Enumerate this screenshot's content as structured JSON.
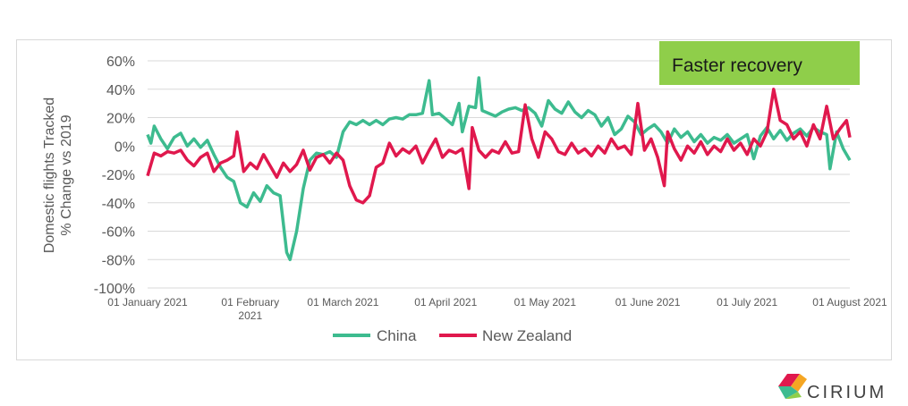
{
  "chart_data": {
    "type": "line",
    "ylabel_lines": [
      "Domestic flights Tracked",
      "% Change vs 2019"
    ],
    "ylim": [
      -100,
      60
    ],
    "yticks": [
      60,
      40,
      20,
      0,
      -20,
      -40,
      -60,
      -80,
      -100
    ],
    "ytick_labels": [
      "60%",
      "40%",
      "20%",
      "0%",
      "-20%",
      "-40%",
      "-60%",
      "-80%",
      "-100%"
    ],
    "xlim": [
      "2021-01-01",
      "2021-08-01"
    ],
    "xticks": [
      {
        "date": "2021-01-01",
        "lines": [
          "01 January 2021"
        ]
      },
      {
        "date": "2021-02-01",
        "lines": [
          "01 February",
          "2021"
        ]
      },
      {
        "date": "2021-03-01",
        "lines": [
          "01 March 2021"
        ]
      },
      {
        "date": "2021-04-01",
        "lines": [
          "01 April 2021"
        ]
      },
      {
        "date": "2021-05-01",
        "lines": [
          "01 May 2021"
        ]
      },
      {
        "date": "2021-06-01",
        "lines": [
          "01 June 2021"
        ]
      },
      {
        "date": "2021-07-01",
        "lines": [
          "01 July 2021"
        ]
      },
      {
        "date": "2021-08-01",
        "lines": [
          "01 August 2021"
        ]
      }
    ],
    "grid": true,
    "legend_position": "bottom",
    "series": [
      {
        "name": "China",
        "color": "#3dbb8f",
        "points": [
          [
            "2021-01-01",
            8
          ],
          [
            "2021-01-02",
            2
          ],
          [
            "2021-01-03",
            14
          ],
          [
            "2021-01-05",
            5
          ],
          [
            "2021-01-07",
            -2
          ],
          [
            "2021-01-09",
            6
          ],
          [
            "2021-01-11",
            9
          ],
          [
            "2021-01-13",
            0
          ],
          [
            "2021-01-15",
            5
          ],
          [
            "2021-01-17",
            -1
          ],
          [
            "2021-01-19",
            4
          ],
          [
            "2021-01-21",
            -6
          ],
          [
            "2021-01-23",
            -15
          ],
          [
            "2021-01-25",
            -22
          ],
          [
            "2021-01-27",
            -25
          ],
          [
            "2021-01-29",
            -40
          ],
          [
            "2021-01-31",
            -43
          ],
          [
            "2021-02-02",
            -33
          ],
          [
            "2021-02-04",
            -39
          ],
          [
            "2021-02-06",
            -28
          ],
          [
            "2021-02-08",
            -33
          ],
          [
            "2021-02-10",
            -35
          ],
          [
            "2021-02-12",
            -75
          ],
          [
            "2021-02-13",
            -80
          ],
          [
            "2021-02-15",
            -60
          ],
          [
            "2021-02-17",
            -30
          ],
          [
            "2021-02-19",
            -10
          ],
          [
            "2021-02-21",
            -5
          ],
          [
            "2021-02-23",
            -6
          ],
          [
            "2021-02-25",
            -4
          ],
          [
            "2021-02-27",
            -8
          ],
          [
            "2021-03-01",
            10
          ],
          [
            "2021-03-03",
            17
          ],
          [
            "2021-03-05",
            15
          ],
          [
            "2021-03-07",
            18
          ],
          [
            "2021-03-09",
            15
          ],
          [
            "2021-03-11",
            18
          ],
          [
            "2021-03-13",
            15
          ],
          [
            "2021-03-15",
            19
          ],
          [
            "2021-03-17",
            20
          ],
          [
            "2021-03-19",
            19
          ],
          [
            "2021-03-21",
            22
          ],
          [
            "2021-03-23",
            22
          ],
          [
            "2021-03-25",
            23
          ],
          [
            "2021-03-27",
            46
          ],
          [
            "2021-03-28",
            22
          ],
          [
            "2021-03-30",
            23
          ],
          [
            "2021-04-01",
            19
          ],
          [
            "2021-04-03",
            15
          ],
          [
            "2021-04-05",
            30
          ],
          [
            "2021-04-06",
            10
          ],
          [
            "2021-04-08",
            28
          ],
          [
            "2021-04-10",
            27
          ],
          [
            "2021-04-11",
            48
          ],
          [
            "2021-04-12",
            25
          ],
          [
            "2021-04-14",
            23
          ],
          [
            "2021-04-16",
            21
          ],
          [
            "2021-04-18",
            24
          ],
          [
            "2021-04-20",
            26
          ],
          [
            "2021-04-22",
            27
          ],
          [
            "2021-04-24",
            25
          ],
          [
            "2021-04-26",
            27
          ],
          [
            "2021-04-28",
            23
          ],
          [
            "2021-04-30",
            14
          ],
          [
            "2021-05-02",
            32
          ],
          [
            "2021-05-04",
            26
          ],
          [
            "2021-05-06",
            23
          ],
          [
            "2021-05-08",
            31
          ],
          [
            "2021-05-10",
            24
          ],
          [
            "2021-05-12",
            20
          ],
          [
            "2021-05-14",
            25
          ],
          [
            "2021-05-16",
            22
          ],
          [
            "2021-05-18",
            14
          ],
          [
            "2021-05-20",
            20
          ],
          [
            "2021-05-22",
            8
          ],
          [
            "2021-05-24",
            12
          ],
          [
            "2021-05-26",
            21
          ],
          [
            "2021-05-28",
            17
          ],
          [
            "2021-05-30",
            8
          ],
          [
            "2021-06-01",
            12
          ],
          [
            "2021-06-03",
            15
          ],
          [
            "2021-06-05",
            10
          ],
          [
            "2021-06-07",
            2
          ],
          [
            "2021-06-09",
            12
          ],
          [
            "2021-06-11",
            6
          ],
          [
            "2021-06-13",
            10
          ],
          [
            "2021-06-15",
            3
          ],
          [
            "2021-06-17",
            8
          ],
          [
            "2021-06-19",
            2
          ],
          [
            "2021-06-21",
            6
          ],
          [
            "2021-06-23",
            4
          ],
          [
            "2021-06-25",
            8
          ],
          [
            "2021-06-27",
            2
          ],
          [
            "2021-06-29",
            5
          ],
          [
            "2021-07-01",
            8
          ],
          [
            "2021-07-03",
            -9
          ],
          [
            "2021-07-05",
            7
          ],
          [
            "2021-07-07",
            13
          ],
          [
            "2021-07-09",
            5
          ],
          [
            "2021-07-11",
            11
          ],
          [
            "2021-07-13",
            4
          ],
          [
            "2021-07-15",
            9
          ],
          [
            "2021-07-17",
            12
          ],
          [
            "2021-07-19",
            7
          ],
          [
            "2021-07-21",
            13
          ],
          [
            "2021-07-23",
            10
          ],
          [
            "2021-07-25",
            8
          ],
          [
            "2021-07-26",
            -16
          ],
          [
            "2021-07-28",
            10
          ],
          [
            "2021-07-30",
            -2
          ],
          [
            "2021-08-01",
            -10
          ]
        ]
      },
      {
        "name": "New Zealand",
        "color": "#e0184d",
        "points": [
          [
            "2021-01-01",
            -21
          ],
          [
            "2021-01-03",
            -5
          ],
          [
            "2021-01-05",
            -7
          ],
          [
            "2021-01-07",
            -4
          ],
          [
            "2021-01-09",
            -5
          ],
          [
            "2021-01-11",
            -3
          ],
          [
            "2021-01-13",
            -10
          ],
          [
            "2021-01-15",
            -14
          ],
          [
            "2021-01-17",
            -8
          ],
          [
            "2021-01-19",
            -5
          ],
          [
            "2021-01-21",
            -18
          ],
          [
            "2021-01-23",
            -12
          ],
          [
            "2021-01-25",
            -10
          ],
          [
            "2021-01-27",
            -7
          ],
          [
            "2021-01-28",
            10
          ],
          [
            "2021-01-30",
            -18
          ],
          [
            "2021-02-01",
            -12
          ],
          [
            "2021-02-03",
            -16
          ],
          [
            "2021-02-05",
            -6
          ],
          [
            "2021-02-07",
            -14
          ],
          [
            "2021-02-09",
            -22
          ],
          [
            "2021-02-11",
            -12
          ],
          [
            "2021-02-13",
            -18
          ],
          [
            "2021-02-15",
            -13
          ],
          [
            "2021-02-17",
            -3
          ],
          [
            "2021-02-19",
            -17
          ],
          [
            "2021-02-21",
            -8
          ],
          [
            "2021-02-23",
            -6
          ],
          [
            "2021-02-25",
            -12
          ],
          [
            "2021-02-27",
            -5
          ],
          [
            "2021-03-01",
            -10
          ],
          [
            "2021-03-03",
            -28
          ],
          [
            "2021-03-05",
            -38
          ],
          [
            "2021-03-07",
            -40
          ],
          [
            "2021-03-09",
            -35
          ],
          [
            "2021-03-11",
            -15
          ],
          [
            "2021-03-13",
            -12
          ],
          [
            "2021-03-15",
            2
          ],
          [
            "2021-03-17",
            -7
          ],
          [
            "2021-03-19",
            -2
          ],
          [
            "2021-03-21",
            -5
          ],
          [
            "2021-03-23",
            0
          ],
          [
            "2021-03-25",
            -12
          ],
          [
            "2021-03-27",
            -3
          ],
          [
            "2021-03-29",
            5
          ],
          [
            "2021-03-31",
            -8
          ],
          [
            "2021-04-02",
            -3
          ],
          [
            "2021-04-04",
            -5
          ],
          [
            "2021-04-06",
            -2
          ],
          [
            "2021-04-08",
            -30
          ],
          [
            "2021-04-09",
            13
          ],
          [
            "2021-04-11",
            -3
          ],
          [
            "2021-04-13",
            -8
          ],
          [
            "2021-04-15",
            -3
          ],
          [
            "2021-04-17",
            -5
          ],
          [
            "2021-04-19",
            3
          ],
          [
            "2021-04-21",
            -5
          ],
          [
            "2021-04-23",
            -4
          ],
          [
            "2021-04-25",
            29
          ],
          [
            "2021-04-27",
            5
          ],
          [
            "2021-04-29",
            -8
          ],
          [
            "2021-05-01",
            10
          ],
          [
            "2021-05-03",
            5
          ],
          [
            "2021-05-05",
            -4
          ],
          [
            "2021-05-07",
            -6
          ],
          [
            "2021-05-09",
            2
          ],
          [
            "2021-05-11",
            -5
          ],
          [
            "2021-05-13",
            -2
          ],
          [
            "2021-05-15",
            -7
          ],
          [
            "2021-05-17",
            0
          ],
          [
            "2021-05-19",
            -5
          ],
          [
            "2021-05-21",
            5
          ],
          [
            "2021-05-23",
            -2
          ],
          [
            "2021-05-25",
            0
          ],
          [
            "2021-05-27",
            -6
          ],
          [
            "2021-05-29",
            30
          ],
          [
            "2021-05-31",
            -3
          ],
          [
            "2021-06-02",
            5
          ],
          [
            "2021-06-04",
            -8
          ],
          [
            "2021-06-06",
            -28
          ],
          [
            "2021-06-07",
            10
          ],
          [
            "2021-06-09",
            -2
          ],
          [
            "2021-06-11",
            -10
          ],
          [
            "2021-06-13",
            0
          ],
          [
            "2021-06-15",
            -5
          ],
          [
            "2021-06-17",
            3
          ],
          [
            "2021-06-19",
            -6
          ],
          [
            "2021-06-21",
            0
          ],
          [
            "2021-06-23",
            -4
          ],
          [
            "2021-06-25",
            5
          ],
          [
            "2021-06-27",
            -3
          ],
          [
            "2021-06-29",
            2
          ],
          [
            "2021-07-01",
            -6
          ],
          [
            "2021-07-03",
            5
          ],
          [
            "2021-07-05",
            0
          ],
          [
            "2021-07-07",
            10
          ],
          [
            "2021-07-09",
            40
          ],
          [
            "2021-07-11",
            18
          ],
          [
            "2021-07-13",
            15
          ],
          [
            "2021-07-15",
            5
          ],
          [
            "2021-07-17",
            10
          ],
          [
            "2021-07-19",
            0
          ],
          [
            "2021-07-21",
            15
          ],
          [
            "2021-07-23",
            5
          ],
          [
            "2021-07-25",
            28
          ],
          [
            "2021-07-27",
            5
          ],
          [
            "2021-07-29",
            12
          ],
          [
            "2021-07-31",
            18
          ],
          [
            "2021-08-01",
            6
          ]
        ]
      }
    ],
    "annotation": {
      "text": "Faster recovery",
      "fill": "#8fce4a"
    }
  },
  "brand": {
    "name": "CIRIUM"
  }
}
